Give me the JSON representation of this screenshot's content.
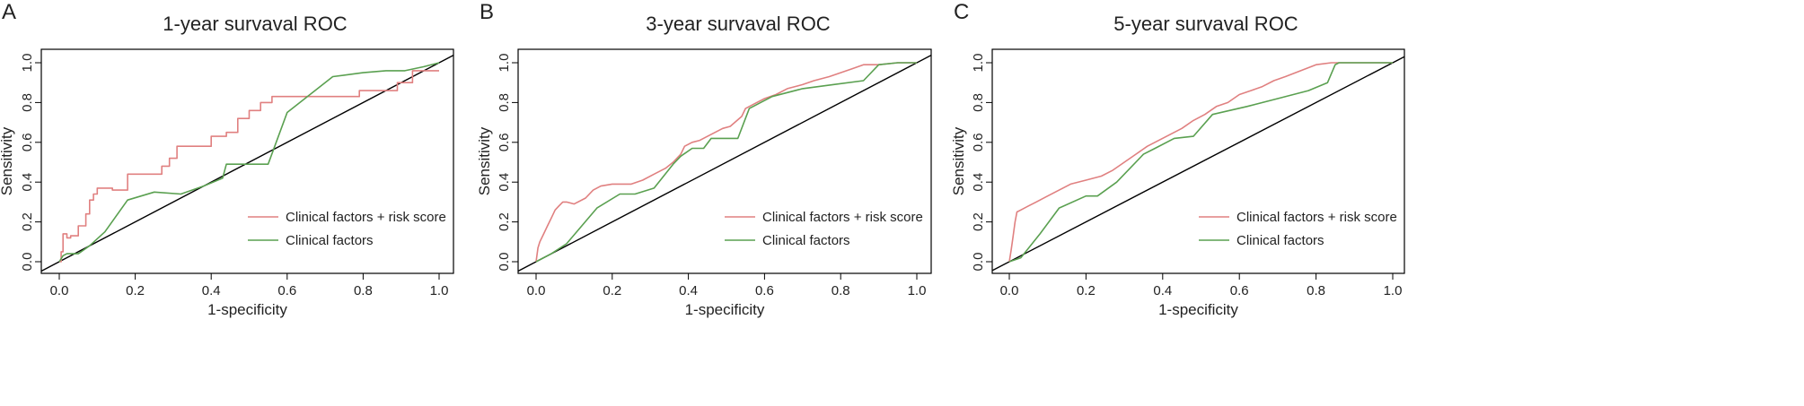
{
  "colors": {
    "model_combined": "#e08080",
    "model_clinical": "#5aa050",
    "diagonal": "#000000",
    "frame": "#000000"
  },
  "chart_data": [
    {
      "panel_letter": "A",
      "type": "line",
      "title": "1-year survaval ROC",
      "xlabel": "1-specificity",
      "ylabel": "Sensitivity",
      "xlim": [
        0,
        1
      ],
      "ylim": [
        0,
        1
      ],
      "xticks": [
        "0.0",
        "0.2",
        "0.4",
        "0.6",
        "0.8",
        "1.0"
      ],
      "yticks": [
        "0.0",
        "0.2",
        "0.4",
        "0.6",
        "0.8",
        "1.0"
      ],
      "legend_position": "bottom-right",
      "series": [
        {
          "name": "Clinical factors + risk score",
          "x": [
            0,
            0.005,
            0.005,
            0.01,
            0.01,
            0.02,
            0.02,
            0.03,
            0.03,
            0.05,
            0.05,
            0.07,
            0.07,
            0.08,
            0.08,
            0.09,
            0.09,
            0.1,
            0.1,
            0.14,
            0.14,
            0.18,
            0.18,
            0.22,
            0.22,
            0.27,
            0.27,
            0.29,
            0.29,
            0.31,
            0.31,
            0.35,
            0.35,
            0.4,
            0.4,
            0.44,
            0.44,
            0.47,
            0.47,
            0.5,
            0.5,
            0.53,
            0.53,
            0.56,
            0.56,
            0.64,
            0.64,
            0.79,
            0.79,
            0.84,
            0.84,
            0.89,
            0.89,
            0.93,
            0.93,
            0.97,
            0.97,
            1.0
          ],
          "y": [
            0,
            0,
            0.05,
            0.05,
            0.14,
            0.14,
            0.12,
            0.12,
            0.13,
            0.13,
            0.18,
            0.18,
            0.24,
            0.24,
            0.31,
            0.31,
            0.34,
            0.34,
            0.37,
            0.37,
            0.36,
            0.36,
            0.44,
            0.44,
            0.44,
            0.44,
            0.48,
            0.48,
            0.52,
            0.52,
            0.58,
            0.58,
            0.58,
            0.58,
            0.63,
            0.63,
            0.65,
            0.65,
            0.72,
            0.72,
            0.76,
            0.76,
            0.8,
            0.8,
            0.83,
            0.83,
            0.83,
            0.83,
            0.86,
            0.86,
            0.86,
            0.86,
            0.9,
            0.9,
            0.96,
            0.96,
            0.96,
            0.96
          ]
        },
        {
          "name": "Clinical factors",
          "x": [
            0,
            0.01,
            0.02,
            0.05,
            0.08,
            0.12,
            0.18,
            0.25,
            0.32,
            0.38,
            0.43,
            0.44,
            0.5,
            0.55,
            0.6,
            0.66,
            0.72,
            0.8,
            0.86,
            0.91,
            0.96,
            1.0
          ],
          "y": [
            0,
            0.03,
            0.04,
            0.04,
            0.08,
            0.15,
            0.31,
            0.35,
            0.34,
            0.38,
            0.42,
            0.49,
            0.49,
            0.49,
            0.75,
            0.84,
            0.93,
            0.95,
            0.96,
            0.96,
            0.98,
            1.0
          ]
        }
      ]
    },
    {
      "panel_letter": "B",
      "type": "line",
      "title": "3-year survaval ROC",
      "xlabel": "1-specificity",
      "ylabel": "Sensitivity",
      "xlim": [
        0,
        1
      ],
      "ylim": [
        0,
        1
      ],
      "xticks": [
        "0.0",
        "0.2",
        "0.4",
        "0.6",
        "0.8",
        "1.0"
      ],
      "yticks": [
        "0.0",
        "0.2",
        "0.4",
        "0.6",
        "0.8",
        "1.0"
      ],
      "legend_position": "bottom-right",
      "series": [
        {
          "name": "Clinical factors + risk score",
          "x": [
            0,
            0.005,
            0.01,
            0.02,
            0.03,
            0.04,
            0.05,
            0.06,
            0.07,
            0.08,
            0.1,
            0.13,
            0.15,
            0.17,
            0.2,
            0.25,
            0.28,
            0.31,
            0.34,
            0.36,
            0.38,
            0.39,
            0.41,
            0.43,
            0.46,
            0.49,
            0.51,
            0.54,
            0.55,
            0.57,
            0.6,
            0.63,
            0.66,
            0.7,
            0.73,
            0.77,
            0.8,
            0.83,
            0.86,
            0.9,
            0.95,
            1.0
          ],
          "y": [
            0,
            0.07,
            0.1,
            0.14,
            0.18,
            0.22,
            0.26,
            0.28,
            0.3,
            0.3,
            0.29,
            0.32,
            0.36,
            0.38,
            0.39,
            0.39,
            0.41,
            0.44,
            0.47,
            0.5,
            0.54,
            0.58,
            0.6,
            0.61,
            0.64,
            0.67,
            0.68,
            0.73,
            0.77,
            0.79,
            0.82,
            0.84,
            0.87,
            0.89,
            0.91,
            0.93,
            0.95,
            0.97,
            0.99,
            0.99,
            1.0,
            1.0
          ]
        },
        {
          "name": "Clinical factors",
          "x": [
            0,
            0.04,
            0.08,
            0.12,
            0.16,
            0.22,
            0.26,
            0.31,
            0.36,
            0.38,
            0.41,
            0.44,
            0.46,
            0.5,
            0.53,
            0.56,
            0.62,
            0.7,
            0.78,
            0.86,
            0.9,
            0.95,
            1.0
          ],
          "y": [
            0,
            0.04,
            0.09,
            0.18,
            0.27,
            0.34,
            0.34,
            0.37,
            0.49,
            0.53,
            0.57,
            0.57,
            0.62,
            0.62,
            0.62,
            0.77,
            0.83,
            0.87,
            0.89,
            0.91,
            0.99,
            1.0,
            1.0
          ]
        }
      ]
    },
    {
      "panel_letter": "C",
      "type": "line",
      "title": "5-year survaval ROC",
      "xlabel": "1-specificity",
      "ylabel": "Sensitivity",
      "xlim": [
        0,
        1
      ],
      "ylim": [
        0,
        1
      ],
      "xticks": [
        "0.0",
        "0.2",
        "0.4",
        "0.6",
        "0.8",
        "1.0"
      ],
      "yticks": [
        "0.0",
        "0.2",
        "0.4",
        "0.6",
        "0.8",
        "1.0"
      ],
      "legend_position": "bottom-right",
      "series": [
        {
          "name": "Clinical factors + risk score",
          "x": [
            0,
            0.005,
            0.01,
            0.015,
            0.02,
            0.03,
            0.05,
            0.07,
            0.1,
            0.13,
            0.16,
            0.2,
            0.24,
            0.27,
            0.3,
            0.33,
            0.36,
            0.39,
            0.42,
            0.45,
            0.48,
            0.51,
            0.54,
            0.57,
            0.6,
            0.63,
            0.66,
            0.69,
            0.72,
            0.76,
            0.8,
            0.84,
            0.88,
            0.92,
            1.0
          ],
          "y": [
            0,
            0.06,
            0.13,
            0.2,
            0.25,
            0.26,
            0.28,
            0.3,
            0.33,
            0.36,
            0.39,
            0.41,
            0.43,
            0.46,
            0.5,
            0.54,
            0.58,
            0.61,
            0.64,
            0.67,
            0.71,
            0.74,
            0.78,
            0.8,
            0.84,
            0.86,
            0.88,
            0.91,
            0.93,
            0.96,
            0.99,
            1.0,
            1.0,
            1.0,
            1.0
          ]
        },
        {
          "name": "Clinical factors",
          "x": [
            0,
            0.03,
            0.08,
            0.13,
            0.2,
            0.23,
            0.28,
            0.35,
            0.38,
            0.43,
            0.48,
            0.53,
            0.62,
            0.7,
            0.78,
            0.83,
            0.85,
            0.86,
            0.92,
            1.0
          ],
          "y": [
            0,
            0.02,
            0.14,
            0.27,
            0.33,
            0.33,
            0.4,
            0.54,
            0.57,
            0.62,
            0.63,
            0.74,
            0.78,
            0.82,
            0.86,
            0.9,
            0.99,
            1.0,
            1.0,
            1.0
          ]
        }
      ]
    }
  ]
}
